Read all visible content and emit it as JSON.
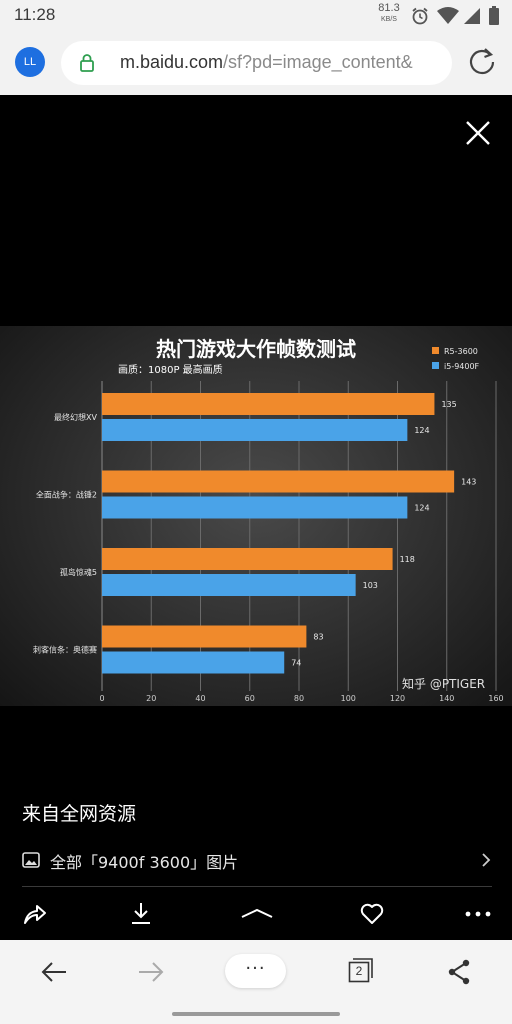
{
  "status_bar": {
    "time": "11:28",
    "net_speed_value": "81.3",
    "net_speed_unit": "KB/S",
    "icons": [
      "alarm-icon",
      "wifi-icon",
      "signal-icon",
      "battery-icon"
    ]
  },
  "address_bar": {
    "avatar_initials": "LL",
    "url_host": "m.baidu.com",
    "url_path": "/sf?pd=image_content&",
    "icons": [
      "lock-icon",
      "reload-icon"
    ]
  },
  "viewer": {
    "close_icon": "close-icon",
    "source_text": "来自全网资源",
    "related_label": "全部「9400f 3600」图片",
    "action_icons": [
      "share-icon",
      "download-icon",
      "collapse-icon",
      "favorite-icon",
      "more-icon"
    ]
  },
  "chart_data": {
    "type": "bar",
    "title": "热门游戏大作帧数测试",
    "subtitle": "画质：1080P 最高画质",
    "categories": [
      "最终幻想XV",
      "全面战争：战锤2",
      "孤岛惊魂5",
      "刺客信条：奥德赛"
    ],
    "series": [
      {
        "name": "R5-3600",
        "color": "#f08a2c",
        "values": [
          135,
          143,
          118,
          83
        ]
      },
      {
        "name": "i5-9400F",
        "color": "#4aa3e8",
        "values": [
          124,
          124,
          103,
          74
        ]
      }
    ],
    "x_ticks": [
      0,
      20,
      40,
      60,
      80,
      100,
      120,
      140,
      160
    ],
    "xlim": [
      0,
      160
    ],
    "grid": "vertical",
    "legend": "top-right",
    "watermark": "知乎 @PTIGER"
  },
  "bottom_nav": {
    "tab_count": "2",
    "more_label": "···",
    "icons": [
      "back-arrow-icon",
      "forward-arrow-icon",
      "more-dots-icon",
      "tabs-icon",
      "share-icon"
    ]
  }
}
